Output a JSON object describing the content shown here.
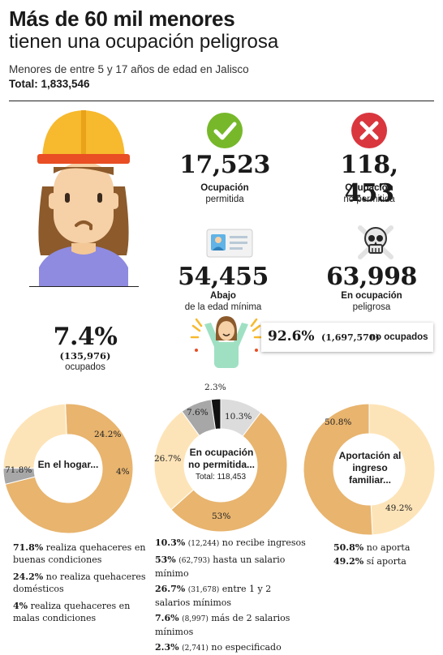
{
  "header": {
    "title_line1": "Más de 60 mil menores",
    "title_line2": "tienen una ocupación peligrosa",
    "subtitle": "Menores de entre 5 y 17 años de edad en Jalisco",
    "total": "Total: 1,833,546"
  },
  "stats": {
    "permitida": {
      "value": "17,523",
      "label_bold": "Ocupación",
      "label": "permitida",
      "icon": "check-icon",
      "color": "#76b82a"
    },
    "no_permitida": {
      "value": "118, 453",
      "label_bold": "Ocupación",
      "label": "no permitida",
      "icon": "x-icon",
      "color": "#d9363e"
    },
    "abajo": {
      "value": "54,455",
      "label_bold": "Abajo",
      "label": "de la edad mínima",
      "icon": "id-card-icon"
    },
    "peligrosa": {
      "value": "63,998",
      "label_bold": "En ocupación",
      "label": "peligrosa",
      "icon": "skull-crossbones-icon"
    },
    "ocupados": {
      "value": "7.4%",
      "count": "(135,976)",
      "label": "ocupados"
    },
    "no_ocupados": {
      "value": "92.6%",
      "count": "(1,697,570)",
      "label": "no ocupados"
    }
  },
  "colors": {
    "dark": "#e8b46e",
    "light": "#fde4b8",
    "gray": "#a7a7a7",
    "light_gray": "#dcdcdc",
    "black": "#111111"
  },
  "chart_data": [
    {
      "type": "pie",
      "title": "En el hogar...",
      "categories": [
        "realiza quehaceres en buenas condiciones",
        "no realiza quehaceres domésticos",
        "realiza quehaceres en malas condiciones"
      ],
      "values": [
        71.8,
        24.2,
        4
      ],
      "labels": [
        "71.8%",
        "24.2%",
        "4%"
      ],
      "colors": [
        "#e8b46e",
        "#fde4b8",
        "#a7a7a7"
      ]
    },
    {
      "type": "pie",
      "title": "En ocupación no permitida...",
      "total_label": "Total: 118,453",
      "categories": [
        "no recibe ingresos",
        "hasta un salario mínimo",
        "entre 1 y 2 salarios mínimos",
        "más de 2 salarios mínimos",
        "no especificado"
      ],
      "values": [
        10.3,
        53,
        26.7,
        7.6,
        2.3
      ],
      "counts": [
        "(12,244)",
        "(62,793)",
        "(31,678)",
        "(8,997)",
        "(2,741)"
      ],
      "labels": [
        "10.3%",
        "53%",
        "26.7%",
        "7.6%",
        "2.3%"
      ],
      "colors": [
        "#dcdcdc",
        "#e8b46e",
        "#fde4b8",
        "#a7a7a7",
        "#111111"
      ]
    },
    {
      "type": "pie",
      "title": "Aportación al ingreso familiar...",
      "categories": [
        "sí aporta",
        "no aporta"
      ],
      "values": [
        49.2,
        50.8
      ],
      "labels": [
        "49.2%",
        "50.8%"
      ],
      "colors": [
        "#fde4b8",
        "#e8b46e"
      ]
    }
  ],
  "lists": {
    "hogar": [
      {
        "pct": "71.8%",
        "text": "realiza quehaceres en buenas condiciones"
      },
      {
        "pct": "24.2%",
        "text": "no realiza quehaceres domésticos"
      },
      {
        "pct": "4%",
        "text": "realiza quehaceres en malas condiciones"
      }
    ],
    "ocupacion": [
      {
        "pct": "10.3%",
        "count": "(12,244)",
        "text": "no recibe ingresos"
      },
      {
        "pct": "53%",
        "count": "(62,793)",
        "text": "hasta un salario mínimo"
      },
      {
        "pct": "26.7%",
        "count": "(31,678)",
        "text": "entre 1 y 2 salarios mínimos"
      },
      {
        "pct": "7.6%",
        "count": "(8,997)",
        "text": "más de 2 salarios mínimos"
      },
      {
        "pct": "2.3%",
        "count": "(2,741)",
        "text": "no especificado"
      }
    ],
    "aportacion": [
      {
        "pct": "50.8%",
        "text": "no aporta"
      },
      {
        "pct": "49.2%",
        "text": "sí aporta"
      }
    ]
  }
}
